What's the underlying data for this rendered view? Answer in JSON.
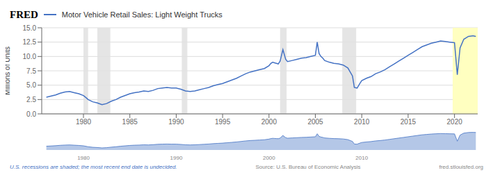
{
  "chart_data": [
    {
      "type": "line",
      "title": "Motor Vehicle Retail Sales: Light Weight Trucks",
      "ylabel": "Millions of Units",
      "annotations": [
        "FRED",
        "U.S. recessions are shaded; the most recent end date is undecided.",
        "Source: U.S. Bureau of Economic Analysis",
        "fred.stlouisfed.org"
      ],
      "x": [
        1976,
        1977,
        1977.5,
        1978,
        1978.5,
        1979,
        1979.5,
        1980,
        1980.3,
        1980.5,
        1981,
        1981.5,
        1982,
        1982.5,
        1983,
        1983.5,
        1984,
        1984.5,
        1985,
        1985.5,
        1986,
        1986.5,
        1987,
        1987.5,
        1988,
        1988.5,
        1989,
        1989.5,
        1990,
        1990.5,
        1991,
        1991.5,
        1992,
        1992.5,
        1993,
        1993.5,
        1994,
        1994.5,
        1995,
        1995.5,
        1996,
        1996.5,
        1997,
        1997.5,
        1998,
        1998.5,
        1999,
        1999.5,
        2000,
        2000.2,
        2000.4,
        2000.6,
        2000.8,
        2001,
        2001.2,
        2001.5,
        2001.8,
        2002,
        2002.5,
        2003,
        2003.5,
        2004,
        2004.5,
        2005,
        2005.2,
        2005.4,
        2005.6,
        2005.8,
        2006,
        2006.5,
        2007,
        2007.5,
        2008,
        2008.5,
        2009,
        2009.2,
        2009.5,
        2009.8,
        2010,
        2010.5,
        2011,
        2011.5,
        2012,
        2012.5,
        2013,
        2013.5,
        2014,
        2014.5,
        2015,
        2015.5,
        2016,
        2016.5,
        2017,
        2017.5,
        2018,
        2018.5,
        2019,
        2019.5,
        2020,
        2020.3,
        2020.6,
        2021,
        2021.5,
        2022,
        2022.3
      ],
      "values": [
        2.9,
        3.3,
        3.6,
        3.8,
        3.9,
        3.7,
        3.5,
        3.2,
        2.8,
        2.5,
        2.1,
        1.9,
        1.6,
        1.8,
        2.2,
        2.5,
        2.9,
        3.2,
        3.5,
        3.7,
        3.8,
        4.0,
        3.9,
        4.1,
        4.4,
        4.5,
        4.6,
        4.5,
        4.5,
        4.3,
        4.0,
        3.9,
        4.0,
        4.2,
        4.4,
        4.6,
        4.9,
        5.1,
        5.3,
        5.6,
        5.9,
        6.2,
        6.6,
        7.0,
        7.3,
        7.5,
        7.7,
        7.9,
        8.4,
        8.8,
        9.0,
        8.9,
        8.8,
        8.7,
        9.2,
        11.2,
        9.5,
        9.1,
        9.3,
        9.5,
        9.7,
        9.8,
        10.0,
        10.2,
        12.5,
        10.5,
        10.0,
        9.7,
        9.3,
        9.0,
        8.8,
        8.7,
        8.5,
        8.0,
        6.6,
        4.6,
        4.5,
        5.3,
        5.8,
        6.2,
        6.5,
        7.0,
        7.3,
        7.7,
        8.2,
        8.7,
        9.2,
        9.7,
        10.2,
        10.7,
        11.2,
        11.7,
        12.0,
        12.3,
        12.5,
        12.7,
        12.6,
        12.5,
        12.4,
        6.8,
        11.5,
        13.0,
        13.5,
        13.6,
        13.5
      ],
      "color": "#4472c4",
      "xlim": [
        1975.5,
        2022.5
      ],
      "xticks": [
        1980,
        1985,
        1990,
        1995,
        2000,
        2005,
        2010,
        2015,
        2020
      ],
      "ylim": [
        0.0,
        15.0
      ],
      "yticks": [
        {
          "value": 0,
          "label": "0.0"
        },
        2.5,
        {
          "value": 5,
          "label": "5.0"
        },
        7.5,
        {
          "value": 10,
          "label": "10.0"
        },
        12.5,
        {
          "value": 15,
          "label": "15.0"
        }
      ],
      "grid": true,
      "recessions": {
        "color": "#e0e0e0",
        "ranges": [
          [
            1980.0,
            1980.5
          ],
          [
            1981.5,
            1982.9
          ],
          [
            1990.6,
            1991.2
          ],
          [
            2001.2,
            2001.9
          ],
          [
            2007.9,
            2009.4
          ],
          [
            2020.2,
            2020.6
          ]
        ]
      },
      "highlight": {
        "color": "#ffffc0",
        "range": [
          2019.8,
          2022.5
        ]
      }
    },
    {
      "type": "area",
      "x": [
        1976,
        1977,
        1977.5,
        1978,
        1978.5,
        1979,
        1979.5,
        1980,
        1980.3,
        1980.5,
        1981,
        1981.5,
        1982,
        1982.5,
        1983,
        1983.5,
        1984,
        1984.5,
        1985,
        1985.5,
        1986,
        1986.5,
        1987,
        1987.5,
        1988,
        1988.5,
        1989,
        1989.5,
        1990,
        1990.5,
        1991,
        1991.5,
        1992,
        1992.5,
        1993,
        1993.5,
        1994,
        1994.5,
        1995,
        1995.5,
        1996,
        1996.5,
        1997,
        1997.5,
        1998,
        1998.5,
        1999,
        1999.5,
        2000,
        2000.2,
        2000.4,
        2000.6,
        2000.8,
        2001,
        2001.2,
        2001.5,
        2001.8,
        2002,
        2002.5,
        2003,
        2003.5,
        2004,
        2004.5,
        2005,
        2005.2,
        2005.4,
        2005.6,
        2005.8,
        2006,
        2006.5,
        2007,
        2007.5,
        2008,
        2008.5,
        2009,
        2009.2,
        2009.5,
        2009.8,
        2010,
        2010.5,
        2011,
        2011.5,
        2012,
        2012.5,
        2013,
        2013.5,
        2014,
        2014.5,
        2015,
        2015.5,
        2016,
        2016.5,
        2017,
        2017.5,
        2018,
        2018.5,
        2019,
        2019.5,
        2020,
        2020.3,
        2020.6,
        2021,
        2021.5,
        2022,
        2022.3
      ],
      "values": [
        2.9,
        3.3,
        3.6,
        3.8,
        3.9,
        3.7,
        3.5,
        3.2,
        2.8,
        2.5,
        2.1,
        1.9,
        1.6,
        1.8,
        2.2,
        2.5,
        2.9,
        3.2,
        3.5,
        3.7,
        3.8,
        4.0,
        3.9,
        4.1,
        4.4,
        4.5,
        4.6,
        4.5,
        4.5,
        4.3,
        4.0,
        3.9,
        4.0,
        4.2,
        4.4,
        4.6,
        4.9,
        5.1,
        5.3,
        5.6,
        5.9,
        6.2,
        6.6,
        7.0,
        7.3,
        7.5,
        7.7,
        7.9,
        8.4,
        8.8,
        9.0,
        8.9,
        8.8,
        8.7,
        9.2,
        11.2,
        9.5,
        9.1,
        9.3,
        9.5,
        9.7,
        9.8,
        10.0,
        10.2,
        12.5,
        10.5,
        10.0,
        9.7,
        9.3,
        9.0,
        8.8,
        8.7,
        8.5,
        8.0,
        6.6,
        4.6,
        4.5,
        5.3,
        5.8,
        6.2,
        6.5,
        7.0,
        7.3,
        7.7,
        8.2,
        8.7,
        9.2,
        9.7,
        10.2,
        10.7,
        11.2,
        11.7,
        12.0,
        12.3,
        12.5,
        12.7,
        12.6,
        12.5,
        12.4,
        6.8,
        11.5,
        13.0,
        13.5,
        13.6,
        13.5
      ],
      "color": "#4472c4",
      "xlim": [
        1975.5,
        2022.5
      ],
      "ylim": [
        0,
        15
      ],
      "xticks": [
        1980,
        1990,
        2000,
        2010
      ],
      "tick_labels": "x"
    }
  ]
}
